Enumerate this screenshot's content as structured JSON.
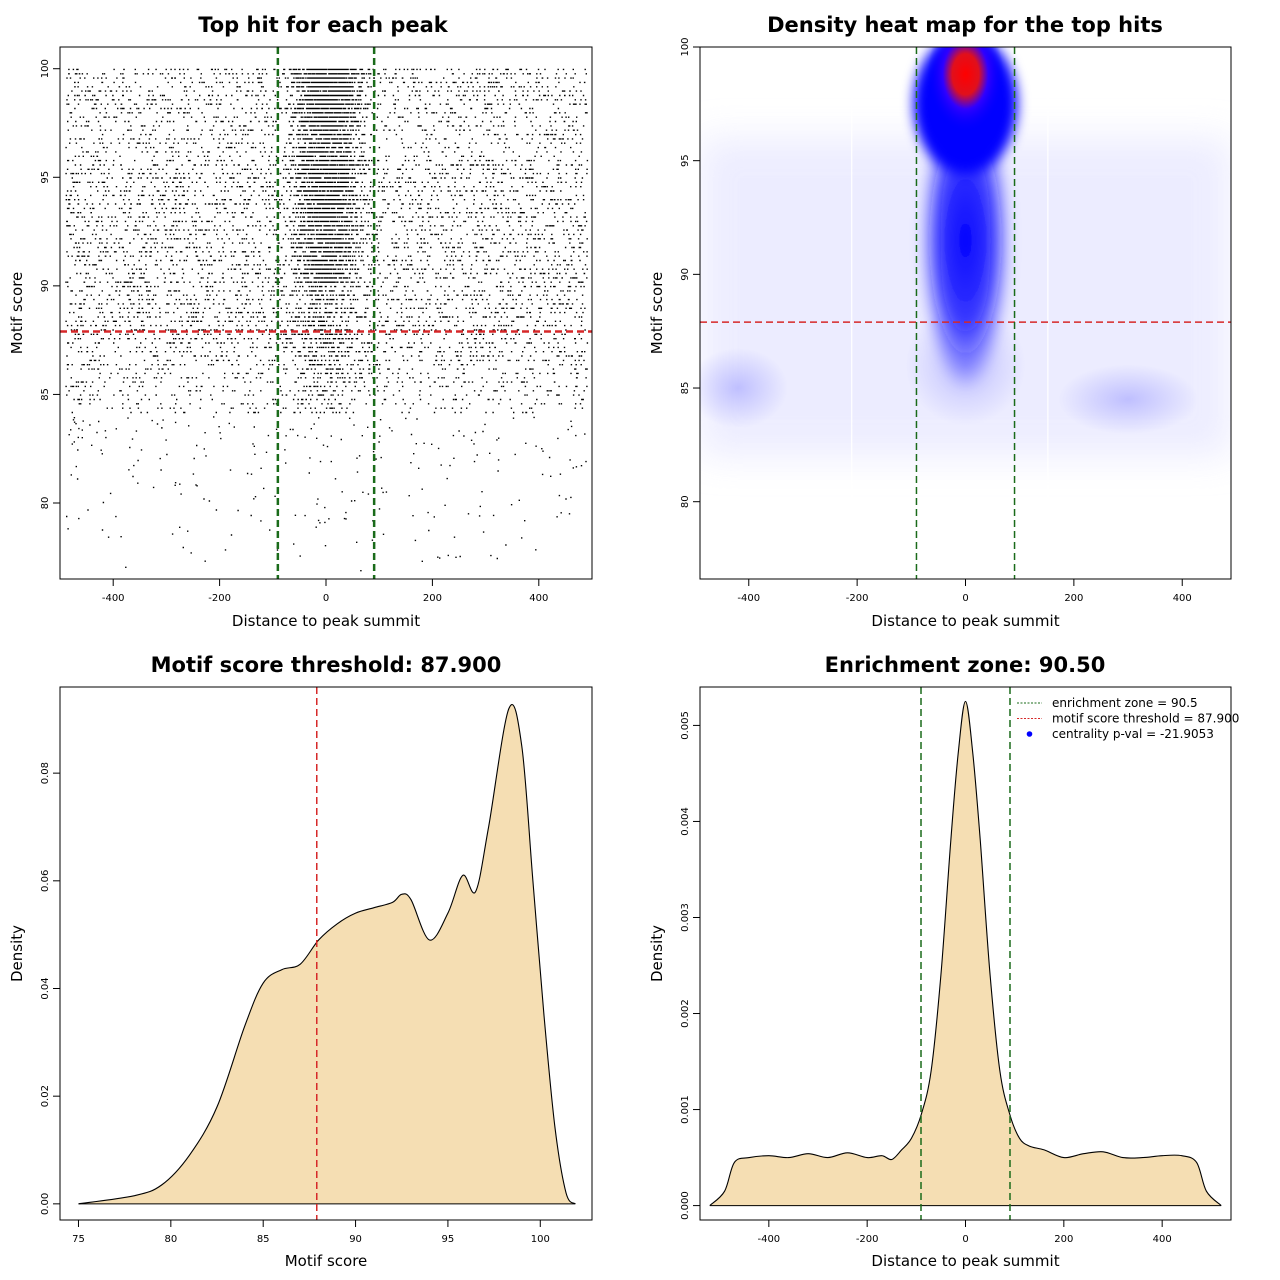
{
  "chart_data": [
    {
      "type": "scatter",
      "title": "Top hit for each peak",
      "xlabel": "Distance to peak summit",
      "ylabel": "Motif score",
      "xlim": [
        -500,
        500
      ],
      "ylim": [
        76.5,
        101
      ],
      "xticks": [
        -400,
        -200,
        0,
        200,
        400
      ],
      "yticks": [
        80,
        85,
        90,
        95,
        100
      ],
      "hlines": [
        {
          "y": 87.9,
          "color": "#d62728",
          "style": "dashed"
        }
      ],
      "vlines": [
        {
          "x": -90.5,
          "color": "#1a6b1a",
          "style": "dashed"
        },
        {
          "x": 90.5,
          "color": "#1a6b1a",
          "style": "dashed"
        }
      ],
      "point_density": {
        "x_range": [
          -490,
          490
        ],
        "y_range": [
          76.8,
          100
        ],
        "central_band_halfwidth": 90,
        "central_peak_score": 98.5,
        "points_color": "#000000"
      }
    },
    {
      "type": "heatmap",
      "title": "Density heat map for the top hits",
      "xlabel": "Distance to peak summit",
      "ylabel": "Motif score",
      "xlim": [
        -490,
        490
      ],
      "ylim": [
        76.6,
        100
      ],
      "xticks": [
        -400,
        -200,
        0,
        200,
        400
      ],
      "yticks": [
        80,
        85,
        90,
        95,
        100
      ],
      "hlines": [
        {
          "y": 87.9,
          "color": "#d62728",
          "style": "dashed"
        }
      ],
      "vlines": [
        {
          "x": -90.5,
          "color": "#1a6b1a",
          "style": "dashed"
        },
        {
          "x": 90.5,
          "color": "#1a6b1a",
          "style": "dashed"
        }
      ],
      "hotspot": {
        "x": 0,
        "y": 98.6
      },
      "colormap": [
        "#ffffff",
        "#0000ff",
        "#ff0000"
      ]
    },
    {
      "type": "area",
      "title": "Motif score threshold: 87.900",
      "xlabel": "Motif score",
      "ylabel": "Density",
      "xlim": [
        74,
        102.8
      ],
      "ylim": [
        -0.003,
        0.096
      ],
      "xticks": [
        75,
        80,
        85,
        90,
        95,
        100
      ],
      "yticks": [
        0.0,
        0.02,
        0.04,
        0.06,
        0.08
      ],
      "ytick_labels": [
        "0.00",
        "0.02",
        "0.04",
        "0.06",
        "0.08"
      ],
      "fill_color": "#f5deb3",
      "vlines": [
        {
          "x": 87.9,
          "color": "#d62728",
          "style": "dashed"
        }
      ],
      "x": [
        75,
        78,
        79.5,
        81,
        82.5,
        84,
        85,
        86,
        87,
        88,
        89,
        90,
        91,
        92,
        92.5,
        93,
        94,
        95,
        95.8,
        96.5,
        97.2,
        98.3,
        99,
        99.6,
        100.2,
        100.8,
        101.4,
        101.9
      ],
      "y": [
        0.0,
        0.0015,
        0.0035,
        0.009,
        0.018,
        0.033,
        0.041,
        0.0435,
        0.0445,
        0.049,
        0.052,
        0.054,
        0.055,
        0.056,
        0.0575,
        0.0565,
        0.049,
        0.054,
        0.061,
        0.058,
        0.07,
        0.092,
        0.085,
        0.06,
        0.035,
        0.014,
        0.002,
        0.0
      ]
    },
    {
      "type": "area",
      "title": "Enrichment zone: 90.50",
      "xlabel": "Distance to peak summit",
      "ylabel": "Density",
      "xlim": [
        -540,
        540
      ],
      "ylim": [
        -0.00015,
        0.0054
      ],
      "xticks": [
        -400,
        -200,
        0,
        200,
        400
      ],
      "yticks": [
        0.0,
        0.001,
        0.002,
        0.003,
        0.004,
        0.005
      ],
      "ytick_labels": [
        "0.000",
        "0.001",
        "0.002",
        "0.003",
        "0.004",
        "0.005"
      ],
      "fill_color": "#f5deb3",
      "vlines": [
        {
          "x": -90.5,
          "color": "#1a6b1a",
          "style": "dashed"
        },
        {
          "x": 90.5,
          "color": "#1a6b1a",
          "style": "dashed"
        }
      ],
      "x": [
        -520,
        -490,
        -470,
        -440,
        -400,
        -360,
        -320,
        -280,
        -240,
        -200,
        -170,
        -150,
        -130,
        -110,
        -90,
        -70,
        -50,
        -30,
        -15,
        0,
        15,
        30,
        50,
        70,
        90,
        110,
        130,
        160,
        200,
        240,
        280,
        320,
        360,
        400,
        440,
        470,
        490,
        520
      ],
      "y": [
        0.0,
        0.00015,
        0.00045,
        0.0005,
        0.00052,
        0.0005,
        0.00054,
        0.0005,
        0.00055,
        0.0005,
        0.00052,
        0.00048,
        0.00058,
        0.0007,
        0.00095,
        0.0014,
        0.0024,
        0.0038,
        0.0047,
        0.00525,
        0.0047,
        0.0038,
        0.0024,
        0.0014,
        0.00095,
        0.0007,
        0.00062,
        0.00058,
        0.0005,
        0.00054,
        0.00056,
        0.0005,
        0.0005,
        0.00052,
        0.00052,
        0.00045,
        0.00015,
        0.0
      ],
      "legend": [
        {
          "label": "enrichment zone = 90.5",
          "color": "#1a6b1a",
          "marker": "line"
        },
        {
          "label": "motif score threshold = 87.900",
          "color": "#d62728",
          "marker": "line"
        },
        {
          "label": "centrality p-val = -21.9053",
          "color": "#0000ff",
          "marker": "dot"
        }
      ],
      "legend_position": "top-right"
    }
  ]
}
